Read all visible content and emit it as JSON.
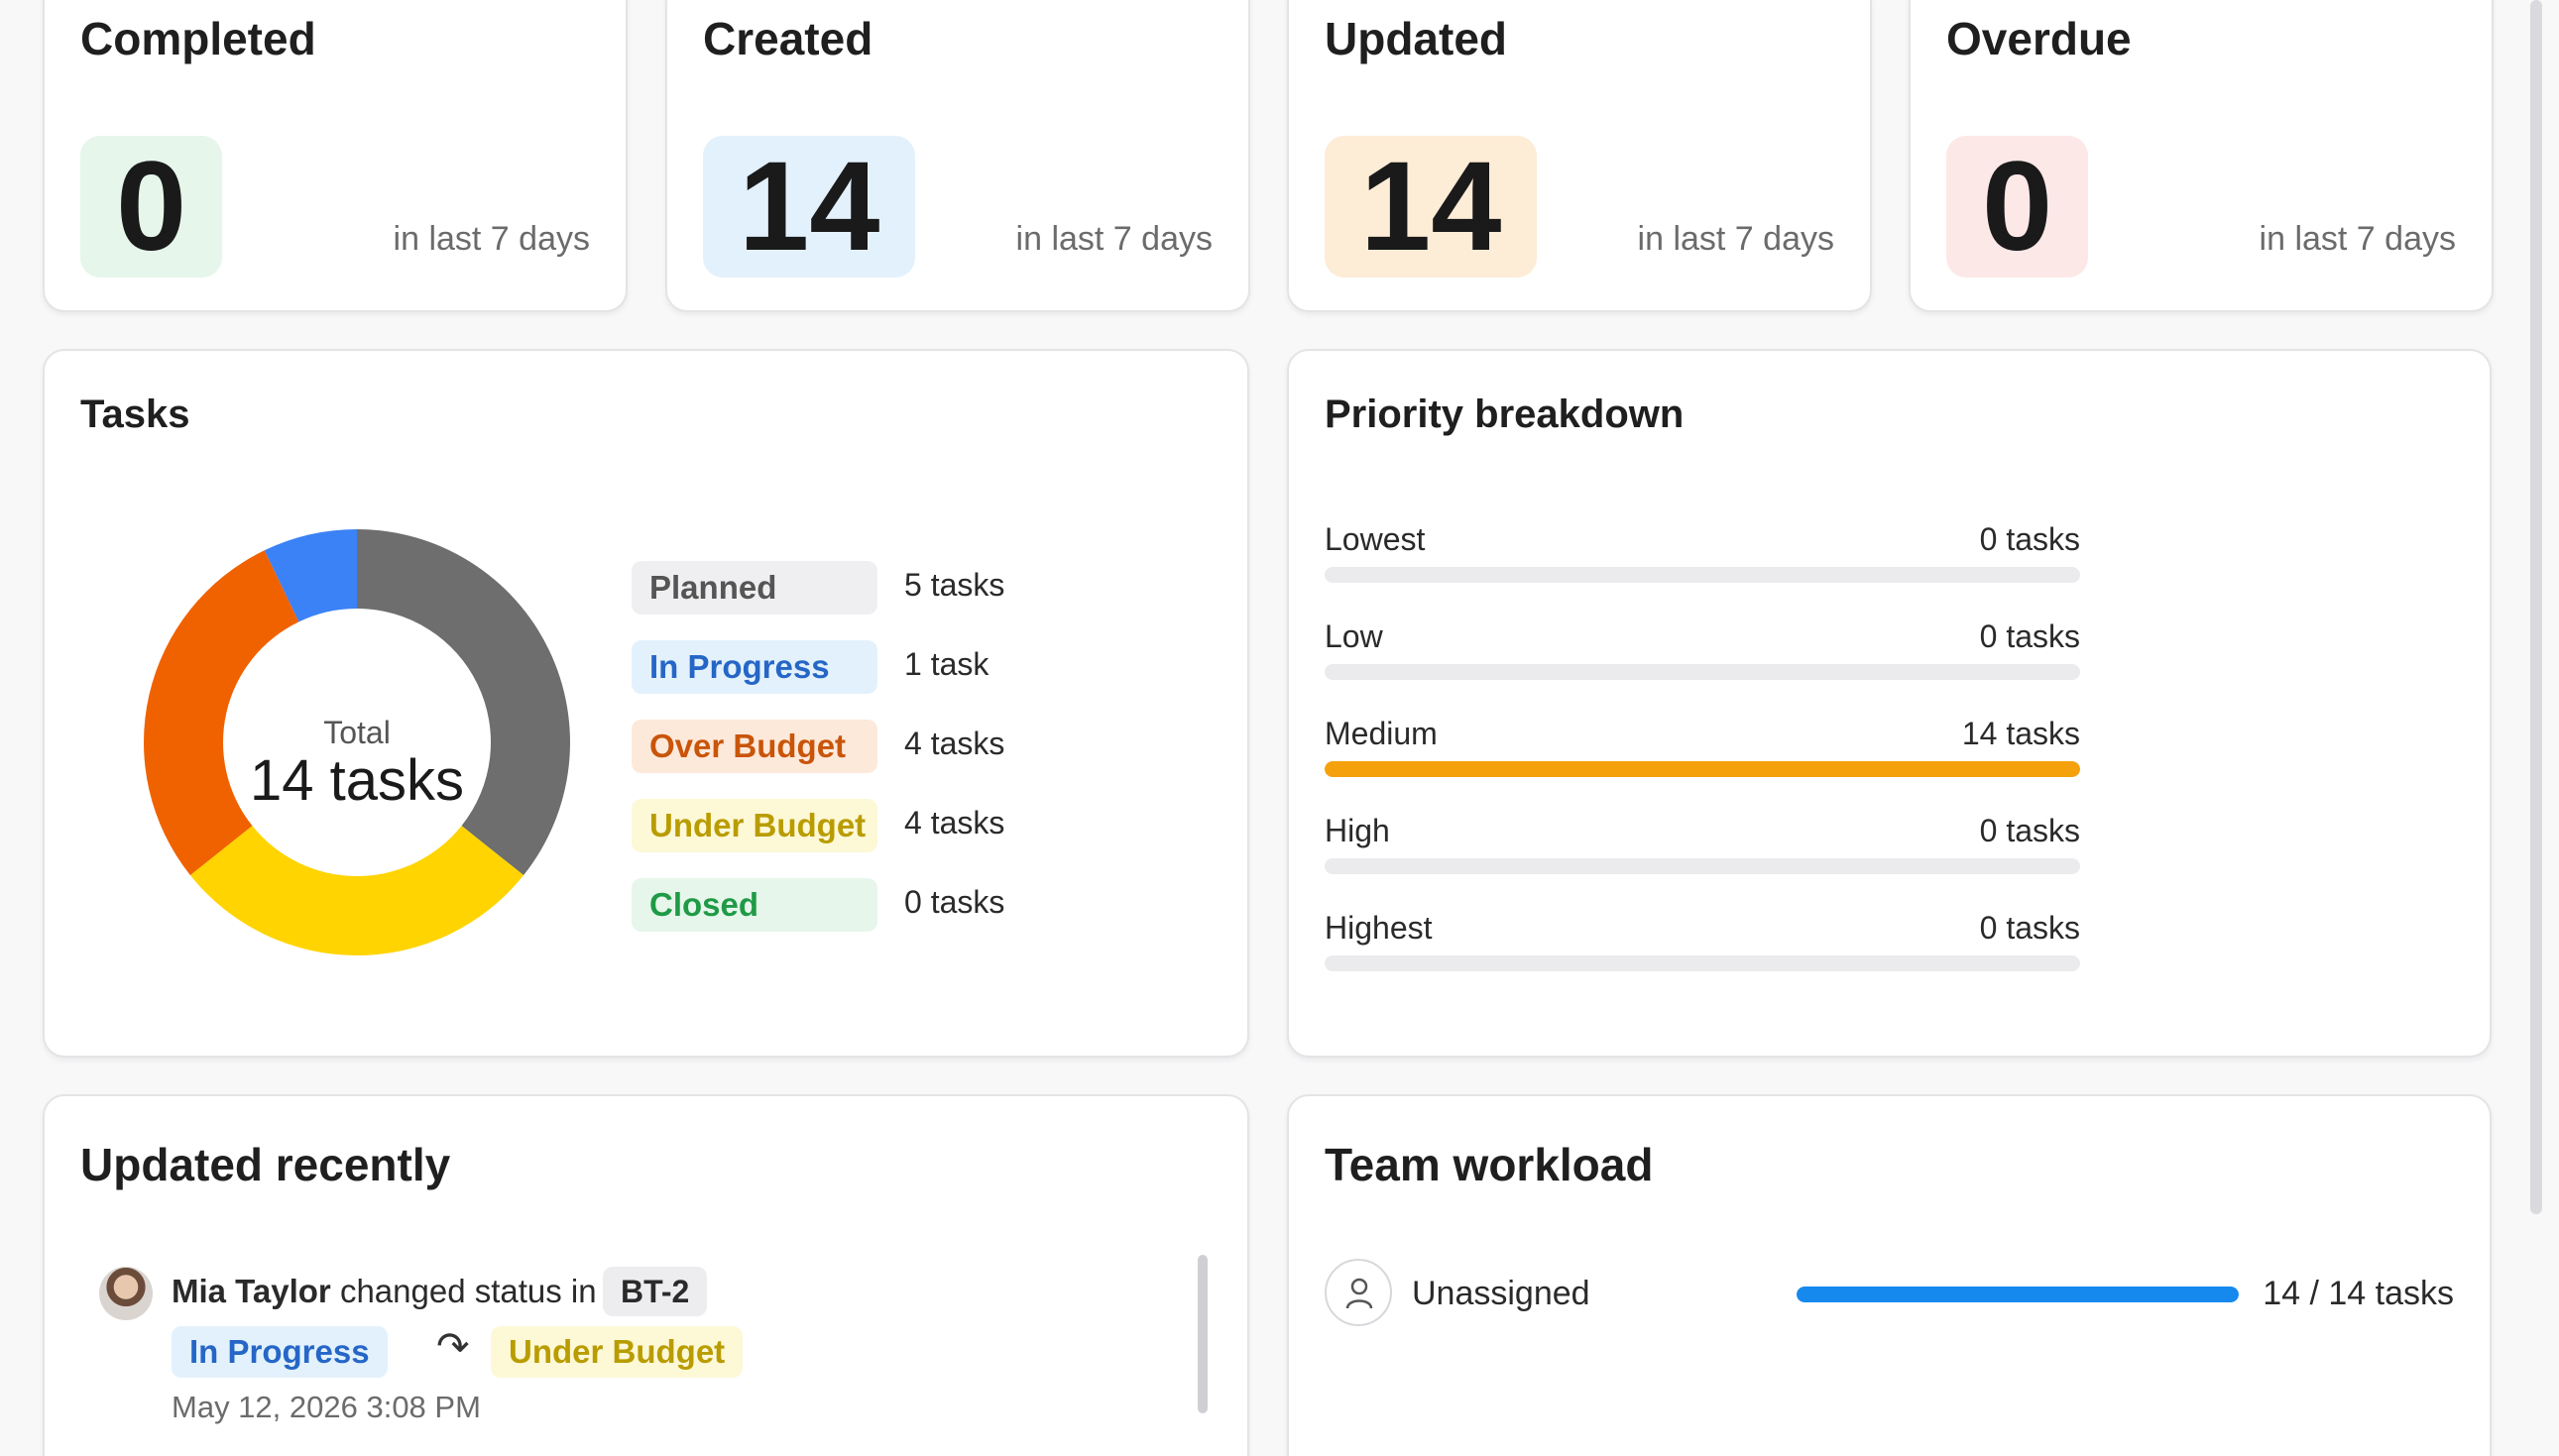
{
  "stats": [
    {
      "title": "Completed",
      "value": "0",
      "sub": "in last 7 days",
      "bg": "#e6f6eb"
    },
    {
      "title": "Created",
      "value": "14",
      "sub": "in last 7 days",
      "bg": "#e3f1fc"
    },
    {
      "title": "Updated",
      "value": "14",
      "sub": "in last 7 days",
      "bg": "#fdecd6"
    },
    {
      "title": "Overdue",
      "value": "0",
      "sub": "in last 7 days",
      "bg": "#fde8e8"
    }
  ],
  "tasks": {
    "title": "Tasks",
    "total_label": "Total",
    "total_count": "14 tasks",
    "legend": [
      {
        "label": "Planned",
        "count": "5 tasks",
        "value": 5,
        "color": "#6e6e6e",
        "pill_bg": "#efeff1",
        "text_color": "#555555"
      },
      {
        "label": "In Progress",
        "count": "1 task",
        "value": 1,
        "color": "#3b82f6",
        "pill_bg": "#e3f1fc",
        "text_color": "#2566c7"
      },
      {
        "label": "Over Budget",
        "count": "4 tasks",
        "value": 4,
        "color": "#f06200",
        "pill_bg": "#fde9da",
        "text_color": "#c9550a"
      },
      {
        "label": "Under Budget",
        "count": "4 tasks",
        "value": 4,
        "color": "#ffd400",
        "pill_bg": "#fdf8d6",
        "text_color": "#b99c00"
      },
      {
        "label": "Closed",
        "count": "0 tasks",
        "value": 0,
        "color": "#22a34a",
        "pill_bg": "#e6f6eb",
        "text_color": "#1f9a45"
      }
    ]
  },
  "priority": {
    "title": "Priority breakdown",
    "rows": [
      {
        "label": "Lowest",
        "count": "0 tasks",
        "fraction": 0
      },
      {
        "label": "Low",
        "count": "0 tasks",
        "fraction": 0
      },
      {
        "label": "Medium",
        "count": "14 tasks",
        "fraction": 1
      },
      {
        "label": "High",
        "count": "0 tasks",
        "fraction": 0
      },
      {
        "label": "Highest",
        "count": "0 tasks",
        "fraction": 0
      }
    ]
  },
  "recent": {
    "title": "Updated recently",
    "user": "Mia Taylor",
    "action": "changed status in",
    "key": "BT-2",
    "from_status": "In Progress",
    "to_status": "Under Budget",
    "arrow": "↷",
    "time": "May 12, 2026 3:08 PM"
  },
  "team": {
    "title": "Team workload",
    "rows": [
      {
        "label": "Unassigned",
        "count": "14 / 14 tasks",
        "fraction": 1
      }
    ]
  }
}
